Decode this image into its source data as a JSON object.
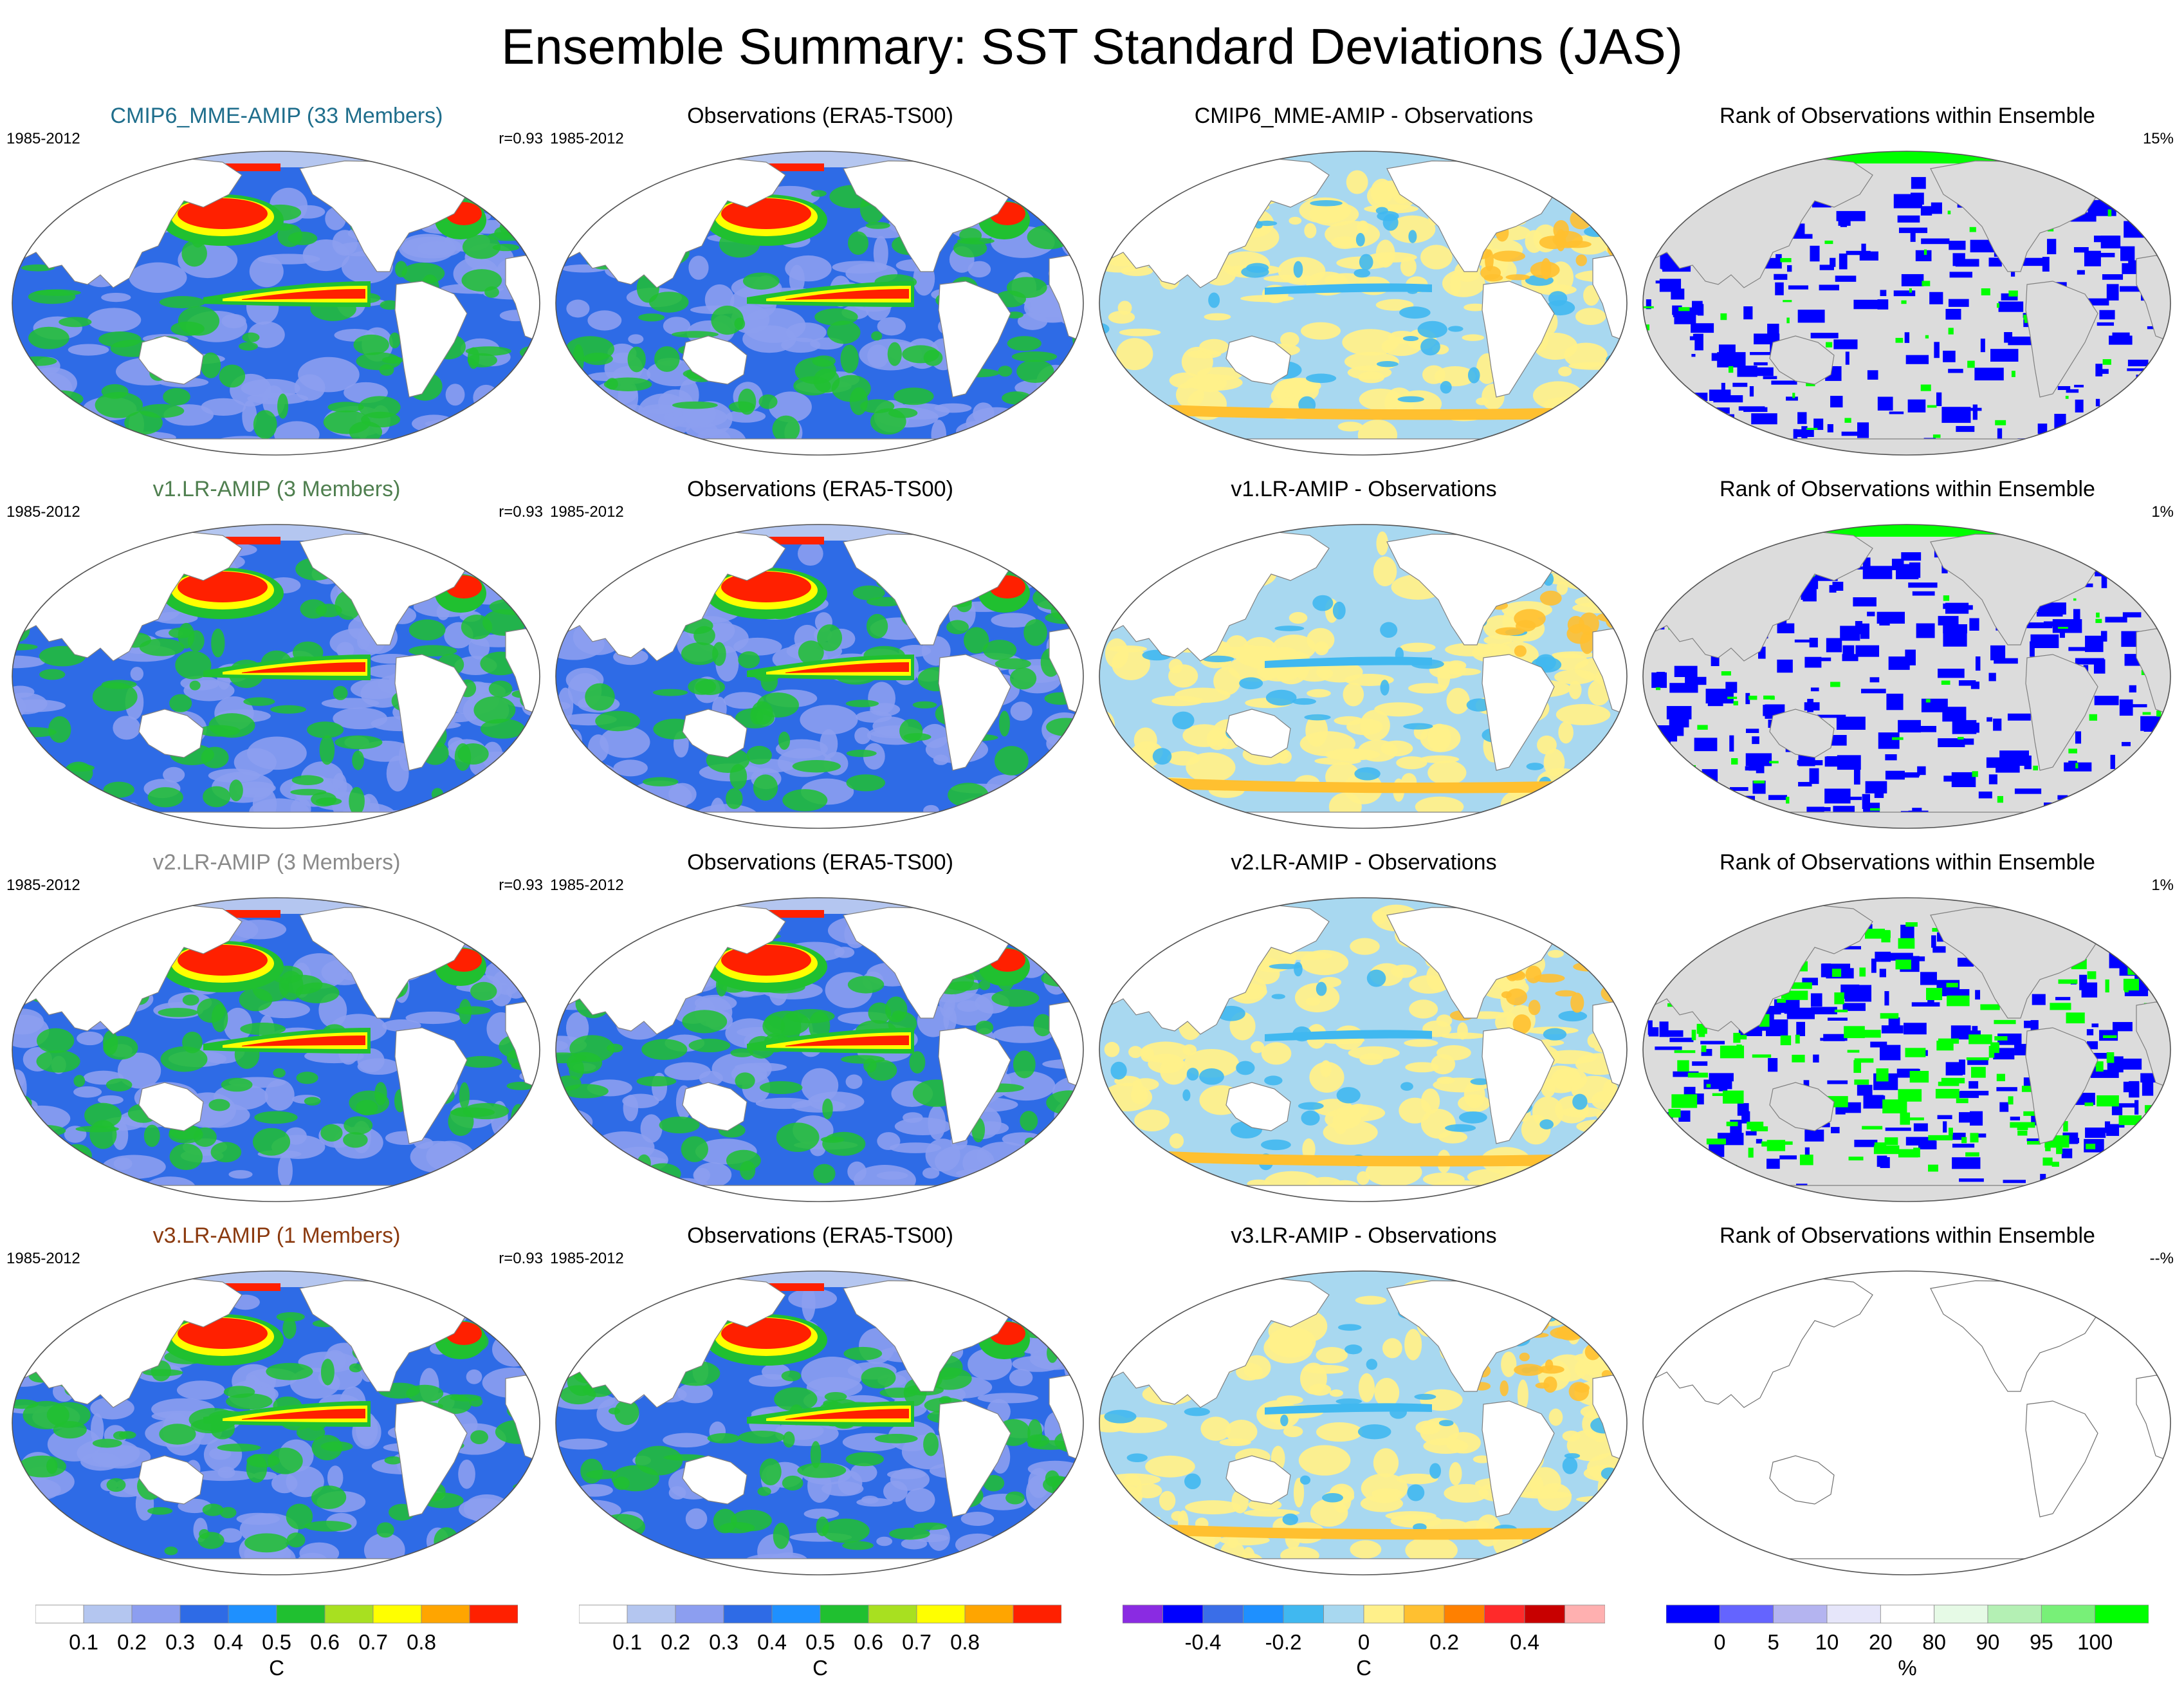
{
  "title": "Ensemble Summary: SST Standard Deviations (JAS)",
  "rows": [
    {
      "model": {
        "title": "CMIP6_MME-AMIP (33 Members)",
        "title_color": "#1f6e8c",
        "period": "1985-2012",
        "corr": "r=0.93"
      },
      "obs": {
        "title": "Observations (ERA5-TS00)",
        "period": "1985-2012"
      },
      "diff": {
        "title": "CMIP6_MME-AMIP - Observations"
      },
      "rank": {
        "title": "Rank of Observations within Ensemble",
        "pct": "15%"
      }
    },
    {
      "model": {
        "title": "v1.LR-AMIP (3 Members)",
        "title_color": "#4f7f4f",
        "period": "1985-2012",
        "corr": "r=0.93"
      },
      "obs": {
        "title": "Observations (ERA5-TS00)",
        "period": "1985-2012"
      },
      "diff": {
        "title": "v1.LR-AMIP - Observations"
      },
      "rank": {
        "title": "Rank of Observations within Ensemble",
        "pct": "1%"
      }
    },
    {
      "model": {
        "title": "v2.LR-AMIP (3 Members)",
        "title_color": "#8a8a8a",
        "period": "1985-2012",
        "corr": "r=0.93"
      },
      "obs": {
        "title": "Observations (ERA5-TS00)",
        "period": "1985-2012"
      },
      "diff": {
        "title": "v2.LR-AMIP - Observations"
      },
      "rank": {
        "title": "Rank of Observations within Ensemble",
        "pct": "1%"
      }
    },
    {
      "model": {
        "title": "v3.LR-AMIP (1 Members)",
        "title_color": "#8b3a0f",
        "period": "1985-2012",
        "corr": "r=0.93"
      },
      "obs": {
        "title": "Observations (ERA5-TS00)",
        "period": "1985-2012"
      },
      "diff": {
        "title": "v3.LR-AMIP - Observations"
      },
      "rank": {
        "title": "Rank of Observations within Ensemble",
        "pct": "--%"
      }
    }
  ],
  "legends": {
    "std": {
      "unit": "C",
      "labels": [
        "0.1",
        "0.2",
        "0.3",
        "0.4",
        "0.5",
        "0.6",
        "0.7",
        "0.8"
      ],
      "colors": [
        "#ffffff",
        "#b4c6f0",
        "#8c9ef0",
        "#2e6be6",
        "#1e90ff",
        "#20c030",
        "#a8e020",
        "#ffff00",
        "#ffa500",
        "#ff2000"
      ]
    },
    "diff": {
      "unit": "C",
      "labels": [
        "-0.4",
        "-0.2",
        "0",
        "0.2",
        "0.4"
      ],
      "colors": [
        "#8a2be2",
        "#0000ff",
        "#3a6ee8",
        "#1e90ff",
        "#40b8f0",
        "#a8d8f0",
        "#fff08a",
        "#ffc030",
        "#ff8000",
        "#ff2a2a",
        "#c80000",
        "#ffb0b0"
      ]
    },
    "rank": {
      "unit": "%",
      "labels": [
        "0",
        "5",
        "10",
        "20",
        "80",
        "90",
        "95",
        "100"
      ],
      "colors": [
        "#0000ff",
        "#6464ff",
        "#b4b4f0",
        "#e6e6fa",
        "#ffffff",
        "#e6fae6",
        "#b4f0b4",
        "#78f078",
        "#00ff00"
      ]
    }
  }
}
